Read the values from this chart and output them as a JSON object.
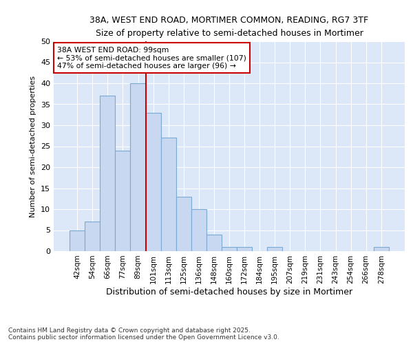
{
  "title1": "38A, WEST END ROAD, MORTIMER COMMON, READING, RG7 3TF",
  "title2": "Size of property relative to semi-detached houses in Mortimer",
  "xlabel": "Distribution of semi-detached houses by size in Mortimer",
  "ylabel": "Number of semi-detached properties",
  "bins": [
    "42sqm",
    "54sqm",
    "66sqm",
    "77sqm",
    "89sqm",
    "101sqm",
    "113sqm",
    "125sqm",
    "136sqm",
    "148sqm",
    "160sqm",
    "172sqm",
    "184sqm",
    "195sqm",
    "207sqm",
    "219sqm",
    "231sqm",
    "243sqm",
    "254sqm",
    "266sqm",
    "278sqm"
  ],
  "bar_heights": [
    5,
    7,
    37,
    24,
    40,
    33,
    27,
    13,
    10,
    4,
    1,
    1,
    0,
    1,
    0,
    0,
    0,
    0,
    0,
    0,
    1
  ],
  "bar_color": "#c8d8f0",
  "bar_edge_color": "#7aaad4",
  "vline_bin_index": 5,
  "annotation_title": "38A WEST END ROAD: 99sqm",
  "annotation_line1": "← 53% of semi-detached houses are smaller (107)",
  "annotation_line2": "47% of semi-detached houses are larger (96) →",
  "annotation_box_color": "#ffffff",
  "annotation_box_edge_color": "#cc0000",
  "vline_color": "#cc0000",
  "ylim": [
    0,
    50
  ],
  "yticks": [
    0,
    5,
    10,
    15,
    20,
    25,
    30,
    35,
    40,
    45,
    50
  ],
  "background_color": "#dce8f8",
  "grid_color": "#ffffff",
  "fig_background": "#ffffff",
  "footer_line1": "Contains HM Land Registry data © Crown copyright and database right 2025.",
  "footer_line2": "Contains public sector information licensed under the Open Government Licence v3.0."
}
